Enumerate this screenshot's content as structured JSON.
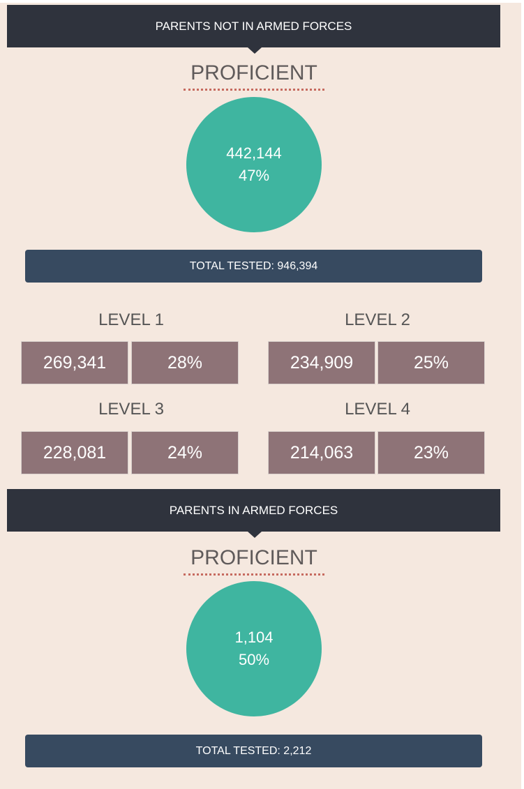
{
  "sections": [
    {
      "header": "PARENTS NOT IN ARMED FORCES",
      "label": "PROFICIENT",
      "count": "442,144",
      "percent": "47%",
      "total": "TOTAL TESTED: 946,394",
      "levels": [
        {
          "name": "LEVEL 1",
          "count": "269,341",
          "percent": "28%"
        },
        {
          "name": "LEVEL 2",
          "count": "234,909",
          "percent": "25%"
        },
        {
          "name": "LEVEL 3",
          "count": "228,081",
          "percent": "24%"
        },
        {
          "name": "LEVEL 4",
          "count": "214,063",
          "percent": "23%"
        }
      ]
    },
    {
      "header": "PARENTS IN ARMED FORCES",
      "label": "PROFICIENT",
      "count": "1,104",
      "percent": "50%",
      "total": "TOTAL TESTED: 2,212"
    }
  ]
}
